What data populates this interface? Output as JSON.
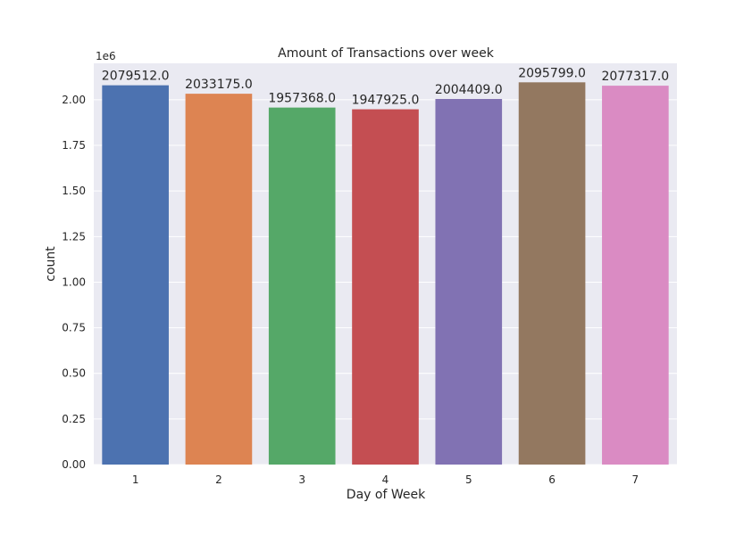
{
  "chart_data": {
    "type": "bar",
    "title": "Amount of Transactions over week",
    "xlabel": "Day of Week",
    "ylabel": "count",
    "offset_text": "1e6",
    "categories": [
      "1",
      "2",
      "3",
      "4",
      "5",
      "6",
      "7"
    ],
    "values": [
      2079512,
      2033175,
      1957368,
      1947925,
      2004409,
      2095799,
      2077317
    ],
    "data_labels": [
      "2079512.0",
      "2033175.0",
      "1957368.0",
      "1947925.0",
      "2004409.0",
      "2095799.0",
      "2077317.0"
    ],
    "y_ticks": [
      0,
      250000,
      500000,
      750000,
      1000000,
      1250000,
      1500000,
      1750000,
      2000000
    ],
    "y_tick_labels": [
      "0.00",
      "0.25",
      "0.50",
      "0.75",
      "1.00",
      "1.25",
      "1.50",
      "1.75",
      "2.00"
    ],
    "ylim": [
      0,
      2200000
    ],
    "grid": true,
    "colors": {
      "plot_background": "#eaeaf2",
      "grid": "#ffffff",
      "bars": [
        "#4c72b0",
        "#dd8452",
        "#55a868",
        "#c44e52",
        "#8172b3",
        "#937860",
        "#da8bc3"
      ]
    }
  }
}
